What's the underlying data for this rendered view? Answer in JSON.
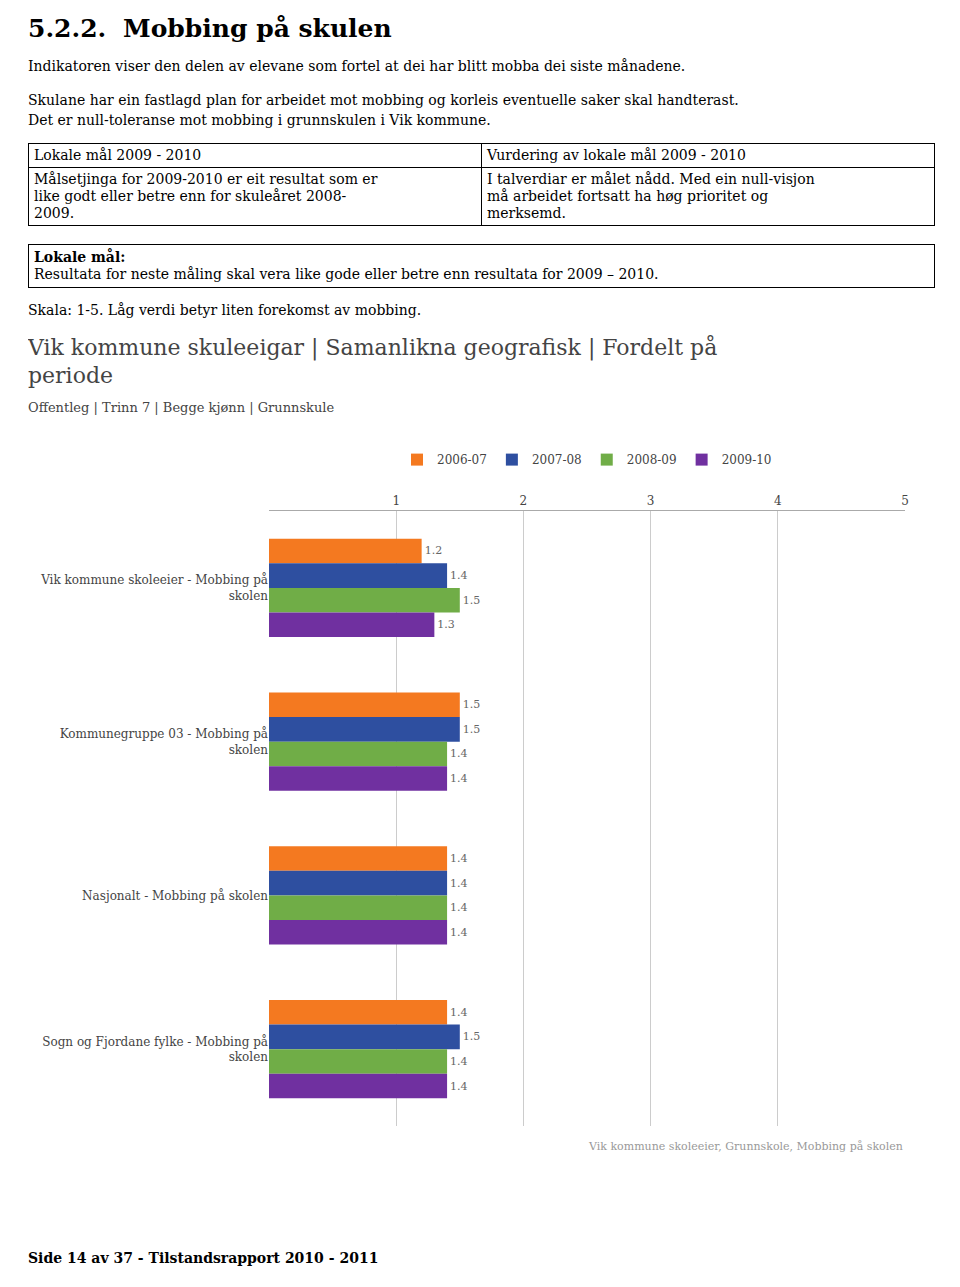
{
  "page": {
    "heading": [
      "5.2.2.",
      "Mobbing på skulen"
    ],
    "intro": [
      "Indikatoren viser den delen av elevane som fortel at dei har blitt mobba dei siste månadene."
    ],
    "intro2": [
      "Skulane har ein fastlagd plan for arbeidet mot mobbing og korleis eventuelle saker skal handterast.",
      "Det er null-toleranse mot mobbing i grunnskulen i Vik kommune."
    ],
    "table_headers": [
      "Lokale mål 2009 - 2010",
      "Vurdering av lokale mål 2009 - 2010"
    ],
    "table_bodies": [
      "Målsetjinga for 2009-2010 er eit resultat som er\nlike godt eller betre enn for skuleåret 2008-\n2009.",
      "I talverdiar er målet nådd. Med ein null-visjon\nmå arbeidet fortsatt ha høg prioritet og\nmerksemd."
    ],
    "goal_header": "Lokale mål:",
    "goal_body": "Resultata for neste måling skal vera like gode eller betre enn resultata for 2009 – 2010.",
    "note": "Skala: 1-5. Låg verdi betyr liten forekomst av mobbing.",
    "footer": "Side 14 av 37 - Tilstandsrapport 2010 - 2011"
  },
  "chart_data": {
    "type": "bar",
    "orientation": "horizontal",
    "title": "Vik kommune skuleeigar | Samanlikna geografisk | Fordelt på\nperiode",
    "subtitle": "Offentleg | Trinn 7 | Begge kjønn | Grunnskule",
    "annotations": [
      "Vik kommune skoleeier, Grunnskole, Mobbing på skolen"
    ],
    "categories": [
      "Vik kommune skoleeier - Mobbing på\nskolen",
      "Kommunegruppe 03 - Mobbing på\nskolen",
      "Nasjonalt - Mobbing på skolen",
      "Sogn og Fjordane fylke - Mobbing på\nskolen"
    ],
    "series": [
      {
        "name": "2006-07",
        "color": "#f47920",
        "values": [
          1.2,
          1.5,
          1.4,
          1.4
        ]
      },
      {
        "name": "2007-08",
        "color": "#2e4fa0",
        "values": [
          1.4,
          1.5,
          1.4,
          1.5
        ]
      },
      {
        "name": "2008-09",
        "color": "#70ad47",
        "values": [
          1.5,
          1.4,
          1.4,
          1.4
        ]
      },
      {
        "name": "2009-10",
        "color": "#7030a0",
        "values": [
          1.3,
          1.4,
          1.4,
          1.4
        ]
      }
    ],
    "xlim": [
      0,
      5
    ],
    "xticks": [
      1,
      2,
      3,
      4,
      5
    ],
    "grid": true,
    "legend": "top",
    "data_labels": true
  }
}
